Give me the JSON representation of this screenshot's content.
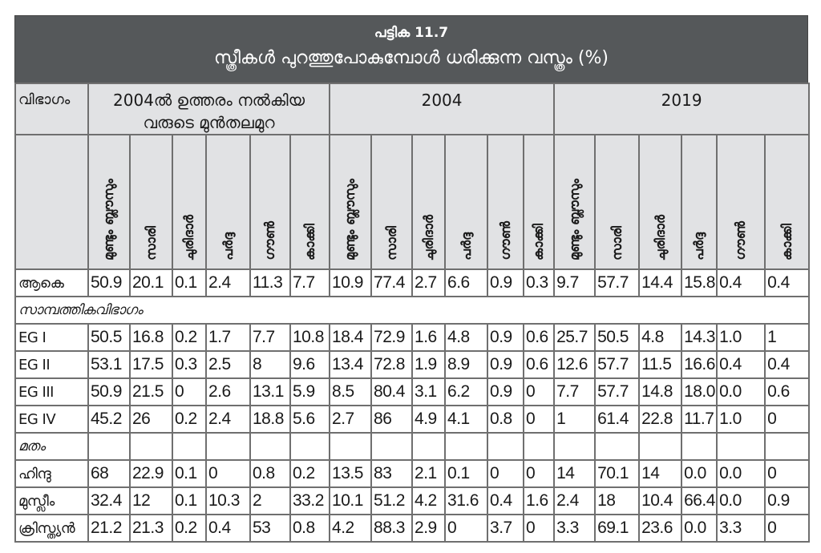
{
  "title": {
    "table_number": "പട്ടിക 11.7",
    "heading": "സ്ത്രീകൾ പുറത്തുപോകുമ്പോൾ ധരിക്കുന്ന വസ്ത്രം (%)"
  },
  "header": {
    "category_label": "വിഭാഗം",
    "groups": [
      "2004ൽ ഉത്തരം നൽകിയ വരുടെ മുൻതലമുറ",
      "2004",
      "2019"
    ],
    "columns": [
      "മുണ്ടും ബ്ലൗസും",
      "സാരി",
      "ചുരിദാർ",
      "പർദ്ദ",
      "ഗൗൺ",
      "കാക്കി"
    ]
  },
  "rows": {
    "total": {
      "label": "ആകെ",
      "values": [
        "50.9",
        "20.1",
        "0.1",
        "2.4",
        "11.3",
        "7.7",
        "10.9",
        "77.4",
        "2.7",
        "6.6",
        "0.9",
        "0.3",
        "9.7",
        "57.7",
        "14.4",
        "15.8",
        "0.4",
        "0.4"
      ]
    },
    "section_economic": "സാമ്പത്തികവിഭാഗം",
    "eg1": {
      "label": "EG I",
      "values": [
        "50.5",
        "16.8",
        "0.2",
        "1.7",
        "7.7",
        "10.8",
        "18.4",
        "72.9",
        "1.6",
        "4.8",
        "0.9",
        "0.6",
        "25.7",
        "50.5",
        "4.8",
        "14.3",
        "1.0",
        "1"
      ]
    },
    "eg2": {
      "label": "EG II",
      "values": [
        "53.1",
        "17.5",
        "0.3",
        "2.5",
        "8",
        "9.6",
        "13.4",
        "72.8",
        "1.9",
        "8.9",
        "0.9",
        "0.6",
        "12.6",
        "57.7",
        "11.5",
        "16.6",
        "0.4",
        "0.4"
      ]
    },
    "eg3": {
      "label": "EG III",
      "values": [
        "50.9",
        "21.5",
        "0",
        "2.6",
        "13.1",
        "5.9",
        "8.5",
        "80.4",
        "3.1",
        "6.2",
        "0.9",
        "0",
        "7.7",
        "57.7",
        "14.8",
        "18.0",
        "0.0",
        "0.6"
      ]
    },
    "eg4": {
      "label": "EG IV",
      "values": [
        "45.2",
        "26",
        "0.2",
        "2.4",
        "18.8",
        "5.6",
        "2.7",
        "86",
        "4.9",
        "4.1",
        "0.8",
        "0",
        "1",
        "61.4",
        "22.8",
        "11.7",
        "1.0",
        "0"
      ]
    },
    "section_religion": "മതം",
    "hindu": {
      "label": "ഹിന്ദു",
      "values": [
        "68",
        "22.9",
        "0.1",
        "0",
        "0.8",
        "0.2",
        "13.5",
        "83",
        "2.1",
        "0.1",
        "0",
        "0",
        "14",
        "70.1",
        "14",
        "0.0",
        "0.0",
        "0"
      ]
    },
    "muslim": {
      "label": "മുസ്ലീം",
      "values": [
        "32.4",
        "12",
        "0.1",
        "10.3",
        "2",
        "33.2",
        "10.1",
        "51.2",
        "4.2",
        "31.6",
        "0.4",
        "1.6",
        "2.4",
        "18",
        "10.4",
        "66.4",
        "0.0",
        "0.9"
      ]
    },
    "christian": {
      "label": "ക്രിസ്ത്യൻ",
      "values": [
        "21.2",
        "21.3",
        "0.2",
        "0.4",
        "53",
        "0.8",
        "4.2",
        "88.3",
        "2.9",
        "0",
        "3.7",
        "0",
        "3.3",
        "69.1",
        "23.6",
        "0.0",
        "3.3",
        "0"
      ]
    }
  },
  "colors": {
    "title_bg": "#55585a",
    "header_bg": "#e1e2e4",
    "border": "#6f6f6f"
  }
}
